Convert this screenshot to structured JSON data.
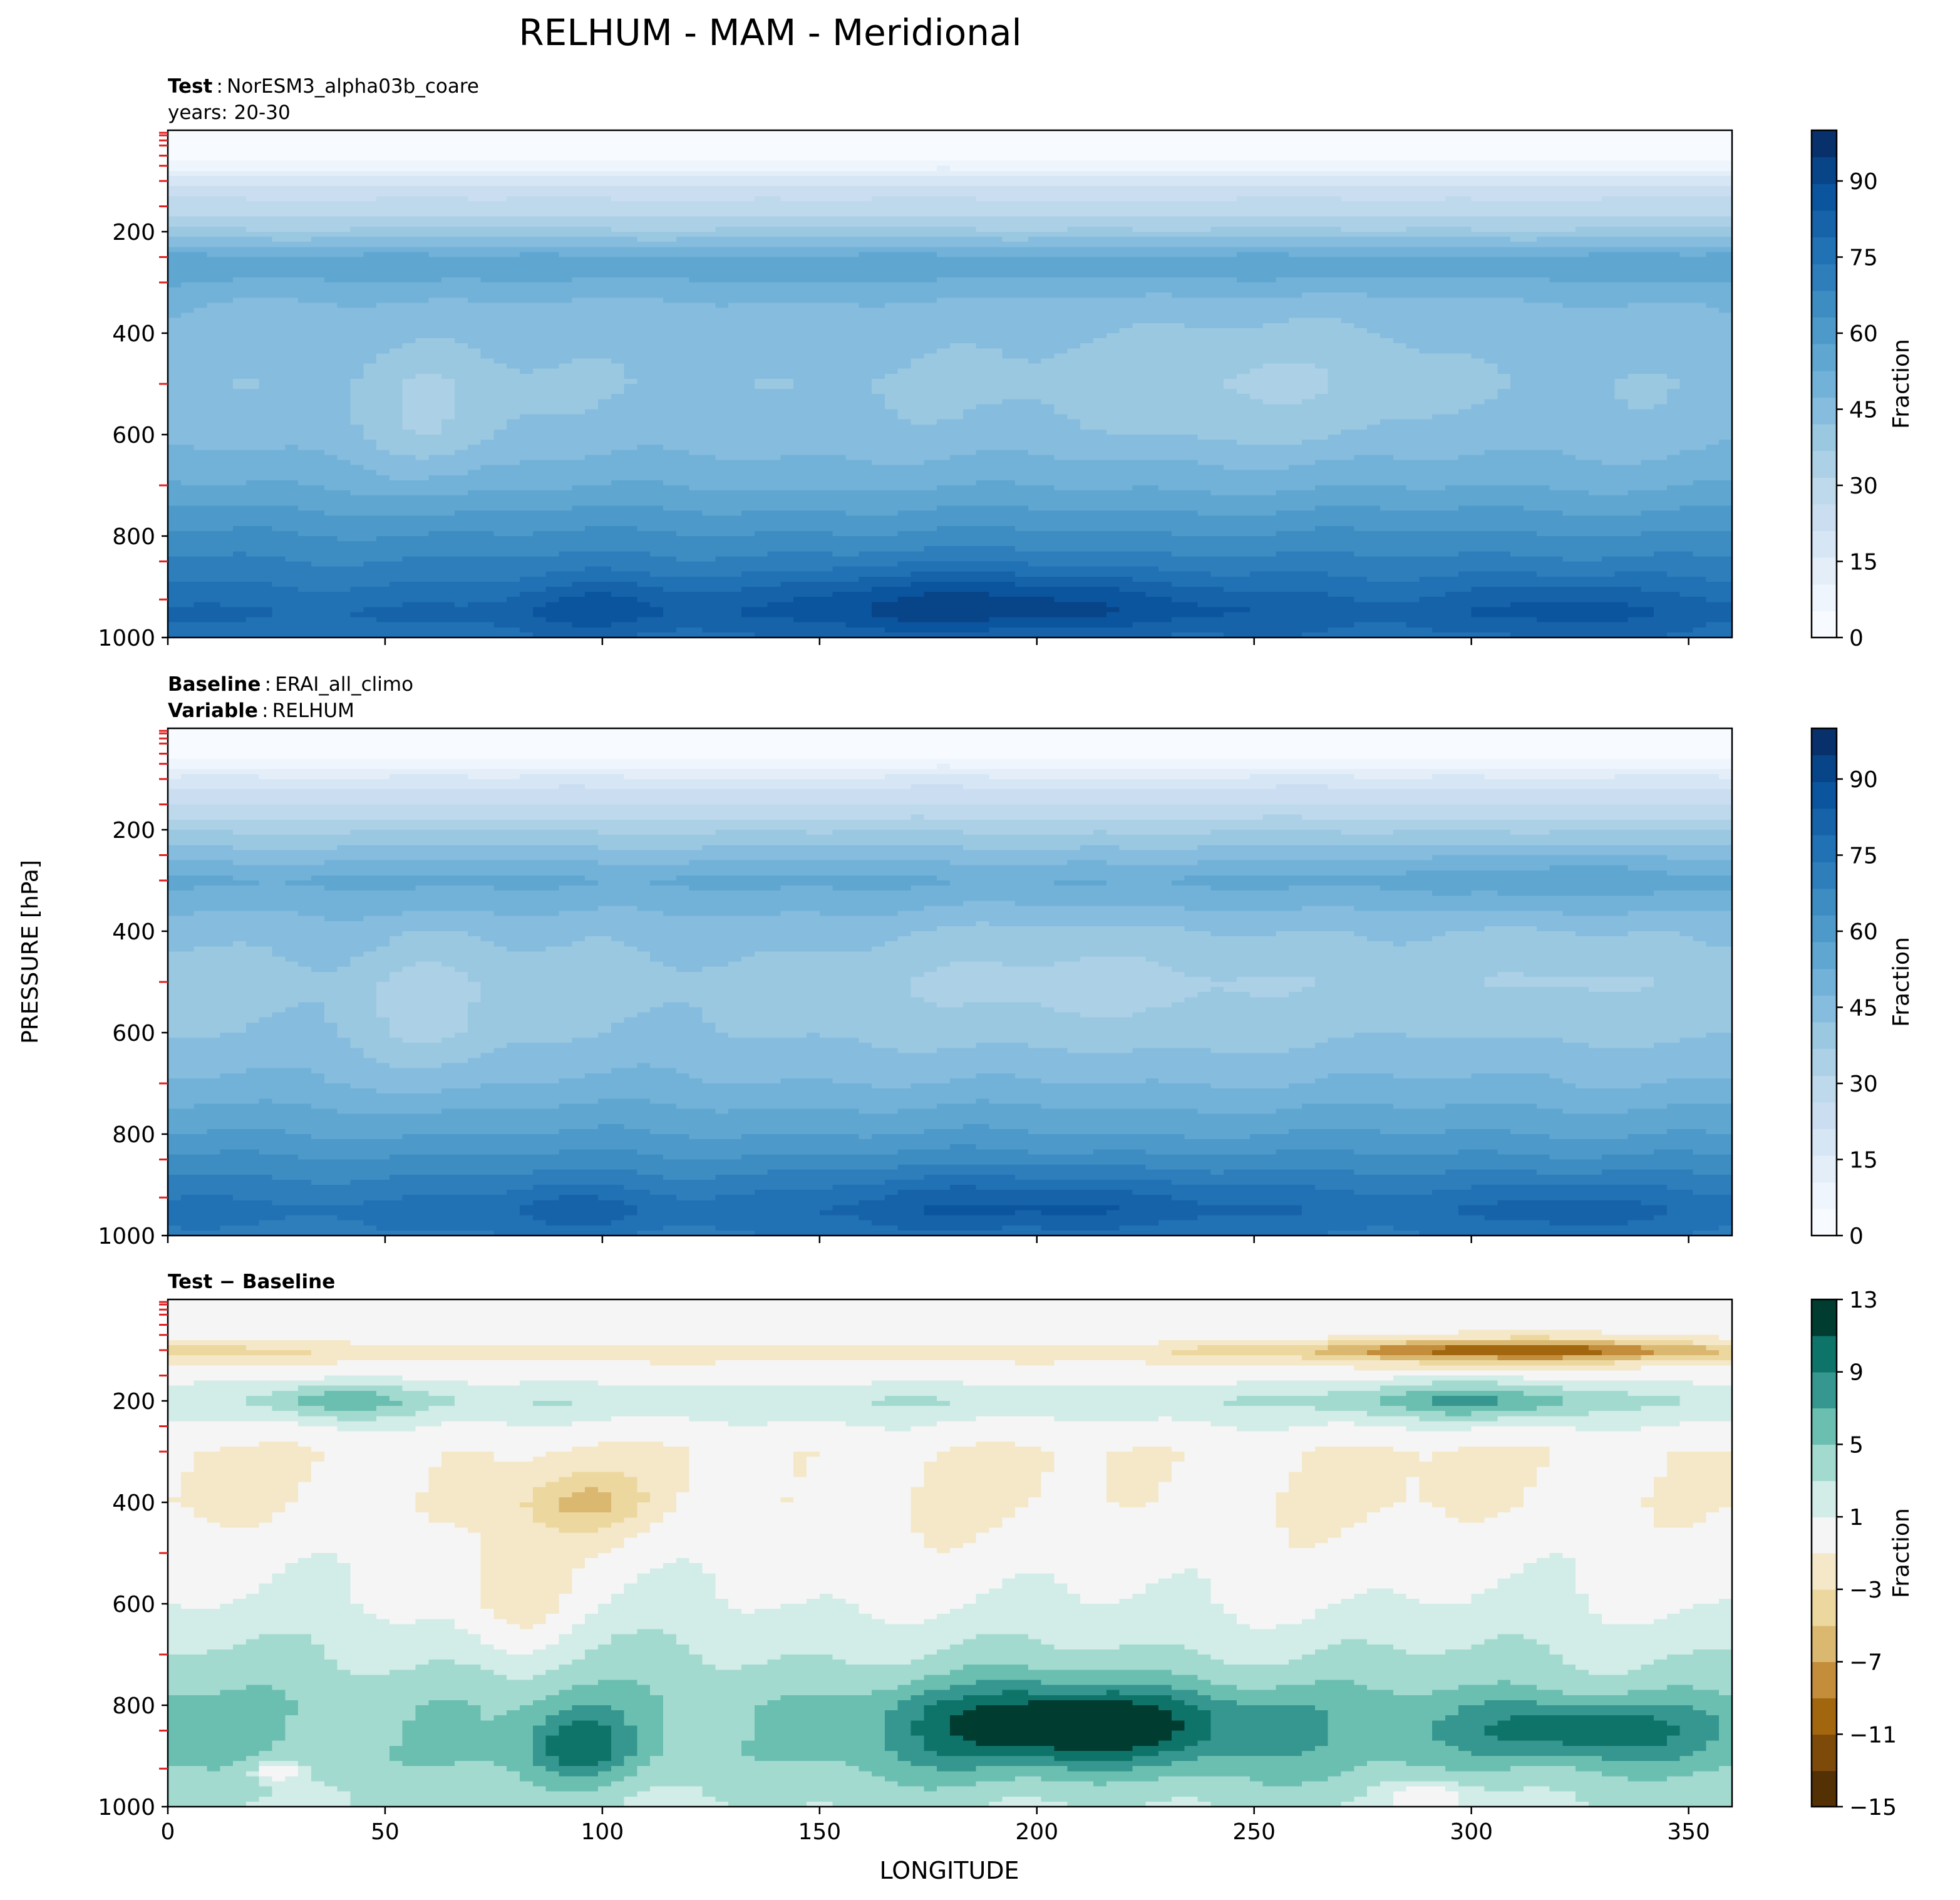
{
  "figure_title": "RELHUM - MAM - Meridional",
  "ylabel_shared": "PRESSURE [hPa]",
  "xlabel": "LONGITUDE",
  "colors": {
    "blues": [
      "#f7fbff",
      "#eef5fd",
      "#e3eef9",
      "#d7e6f5",
      "#cbdef1",
      "#bed8ec",
      "#acd0e6",
      "#9ac8e1",
      "#86bcdd",
      "#72b2d8",
      "#5fa6d1",
      "#4d99ca",
      "#3d8dc3",
      "#2e7ebc",
      "#2171b5",
      "#1663aa",
      "#0b559f",
      "#084488",
      "#08306b"
    ],
    "brbg": [
      "#543005",
      "#7d4a0a",
      "#a2660f",
      "#c48d3b",
      "#dbb870",
      "#ecd79f",
      "#f4e8c8",
      "#f5f5f5",
      "#d2ece8",
      "#a3dad0",
      "#6bbfb0",
      "#35978f",
      "#0e746a",
      "#003c30"
    ]
  },
  "chart_data": [
    {
      "type": "heatmap",
      "panel": "test",
      "title_lines": [
        {
          "key": "Test",
          "value": "NorESM3_alpha03b_coare"
        },
        {
          "key": "",
          "value": "years: 20-30"
        }
      ],
      "x_ticks": [
        "0",
        "50",
        "100",
        "150",
        "200",
        "250",
        "300",
        "350"
      ],
      "y_ticks": [
        "200",
        "400",
        "600",
        "800",
        "1000"
      ],
      "xlim": [
        0,
        360
      ],
      "ylim": [
        1000,
        0
      ],
      "colorbar": {
        "label": "Fraction",
        "ticks": [
          "0",
          "15",
          "30",
          "45",
          "60",
          "75",
          "90"
        ],
        "range": [
          0,
          100
        ],
        "levels": 19,
        "cmap": "Blues"
      },
      "profile": [
        [
          0,
          0
        ],
        [
          30,
          2
        ],
        [
          60,
          5
        ],
        [
          80,
          12
        ],
        [
          120,
          24
        ],
        [
          160,
          30
        ],
        [
          200,
          38
        ],
        [
          260,
          57
        ],
        [
          350,
          46
        ],
        [
          500,
          42
        ],
        [
          600,
          44
        ],
        [
          700,
          52
        ],
        [
          800,
          64
        ],
        [
          880,
          72
        ],
        [
          950,
          80
        ],
        [
          1000,
          76
        ]
      ],
      "bumps": [
        {
          "lon": 190,
          "p": 930,
          "amp": 14,
          "dlon": 55,
          "dp": 70
        },
        {
          "lon": 100,
          "p": 940,
          "amp": 8,
          "dlon": 18,
          "dp": 60
        },
        {
          "lon": 320,
          "p": 940,
          "amp": 8,
          "dlon": 25,
          "dp": 70
        },
        {
          "lon": 60,
          "p": 560,
          "amp": -7,
          "dlon": 14,
          "dp": 140
        },
        {
          "lon": 245,
          "p": 480,
          "amp": -6,
          "dlon": 40,
          "dp": 140
        },
        {
          "lon": 0,
          "p": 500,
          "amp": 3,
          "dlon": 12,
          "dp": 200
        }
      ]
    },
    {
      "type": "heatmap",
      "panel": "baseline",
      "title_lines": [
        {
          "key": "Baseline",
          "value": "ERAI_all_climo"
        },
        {
          "key": "Variable",
          "value": "RELHUM"
        }
      ],
      "x_ticks": [
        "0",
        "50",
        "100",
        "150",
        "200",
        "250",
        "300",
        "350"
      ],
      "y_ticks": [
        "200",
        "400",
        "600",
        "800",
        "1000"
      ],
      "xlim": [
        0,
        360
      ],
      "ylim": [
        1000,
        0
      ],
      "colorbar": {
        "label": "Fraction",
        "ticks": [
          "0",
          "15",
          "30",
          "45",
          "60",
          "75",
          "90"
        ],
        "range": [
          0,
          100
        ],
        "levels": 19,
        "cmap": "Blues"
      },
      "profile": [
        [
          0,
          0
        ],
        [
          30,
          2
        ],
        [
          60,
          5
        ],
        [
          80,
          12
        ],
        [
          120,
          22
        ],
        [
          160,
          28
        ],
        [
          200,
          36
        ],
        [
          300,
          54
        ],
        [
          400,
          44
        ],
        [
          500,
          40
        ],
        [
          600,
          42
        ],
        [
          700,
          48
        ],
        [
          800,
          58
        ],
        [
          880,
          68
        ],
        [
          950,
          76
        ],
        [
          1000,
          72
        ]
      ],
      "bumps": [
        {
          "lon": 200,
          "p": 940,
          "amp": 10,
          "dlon": 50,
          "dp": 70
        },
        {
          "lon": 95,
          "p": 950,
          "amp": 6,
          "dlon": 18,
          "dp": 60
        },
        {
          "lon": 320,
          "p": 950,
          "amp": 7,
          "dlon": 25,
          "dp": 70
        },
        {
          "lon": 60,
          "p": 560,
          "amp": -7,
          "dlon": 14,
          "dp": 140
        },
        {
          "lon": 215,
          "p": 500,
          "amp": -6,
          "dlon": 45,
          "dp": 140
        },
        {
          "lon": 320,
          "p": 480,
          "amp": -5,
          "dlon": 25,
          "dp": 120
        },
        {
          "lon": 315,
          "p": 290,
          "amp": 4,
          "dlon": 30,
          "dp": 60
        }
      ]
    },
    {
      "type": "heatmap",
      "panel": "difference",
      "title_lines": [
        {
          "key": "Test − Baseline",
          "value": ""
        }
      ],
      "x_ticks": [
        "0",
        "50",
        "100",
        "150",
        "200",
        "250",
        "300",
        "350"
      ],
      "y_ticks": [
        "200",
        "400",
        "600",
        "800",
        "1000"
      ],
      "xlim": [
        0,
        360
      ],
      "ylim": [
        1000,
        0
      ],
      "colorbar": {
        "label": "Fraction",
        "ticks": [
          "13",
          "9",
          "5",
          "1",
          "−3",
          "−7",
          "−11",
          "−15"
        ],
        "range": [
          -15,
          13
        ],
        "levels": 14,
        "cmap": "BrBG"
      },
      "profile": [
        [
          0,
          0
        ],
        [
          80,
          0
        ],
        [
          100,
          -3
        ],
        [
          120,
          -1
        ],
        [
          150,
          0
        ],
        [
          200,
          3
        ],
        [
          240,
          1
        ],
        [
          300,
          -1
        ],
        [
          400,
          -1
        ],
        [
          500,
          0
        ],
        [
          600,
          1
        ],
        [
          700,
          3
        ],
        [
          800,
          5
        ],
        [
          900,
          5
        ],
        [
          1000,
          3
        ]
      ],
      "bumps": [
        {
          "lon": 210,
          "p": 840,
          "amp": 9,
          "dlon": 40,
          "dp": 80
        },
        {
          "lon": 95,
          "p": 880,
          "amp": 5,
          "dlon": 12,
          "dp": 70
        },
        {
          "lon": 325,
          "p": 850,
          "amp": 6,
          "dlon": 30,
          "dp": 60
        },
        {
          "lon": 40,
          "p": 200,
          "amp": 4,
          "dlon": 15,
          "dp": 40
        },
        {
          "lon": 300,
          "p": 200,
          "amp": 5,
          "dlon": 25,
          "dp": 40
        },
        {
          "lon": 310,
          "p": 100,
          "amp": -8,
          "dlon": 45,
          "dp": 25
        },
        {
          "lon": 95,
          "p": 400,
          "amp": -4,
          "dlon": 15,
          "dp": 60
        },
        {
          "lon": 25,
          "p": 930,
          "amp": -5,
          "dlon": 5,
          "dp": 20
        },
        {
          "lon": 290,
          "p": 980,
          "amp": -4,
          "dlon": 10,
          "dp": 30
        },
        {
          "lon": 80,
          "p": 600,
          "amp": -3,
          "dlon": 12,
          "dp": 120
        }
      ]
    }
  ]
}
